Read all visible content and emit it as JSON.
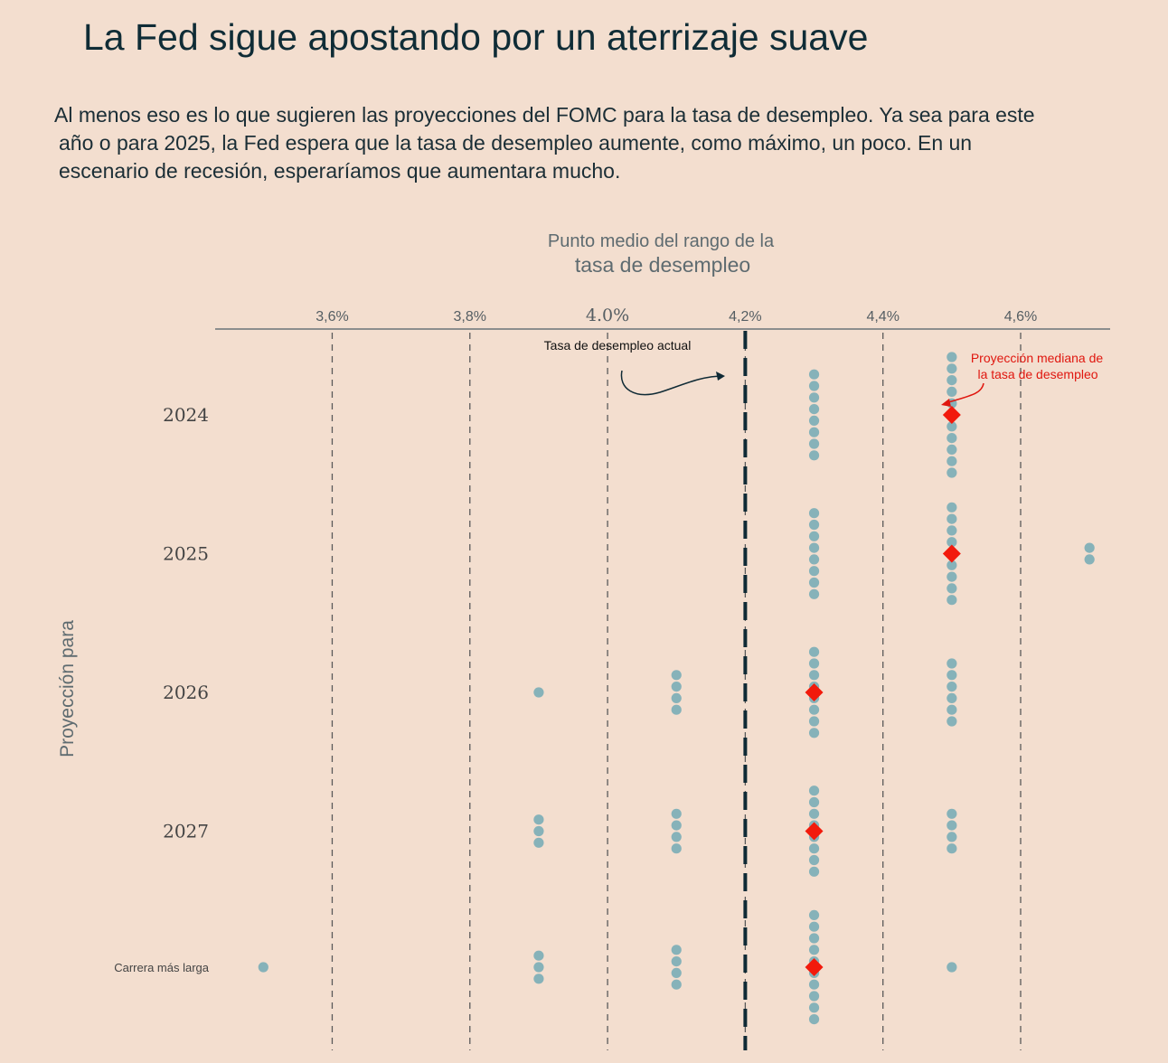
{
  "title": "La Fed sigue apostando por un aterrizaje suave",
  "subtitle": [
    "Al menos eso es lo que sugieren las proyecciones del FOMC para la tasa de desempleo. Ya sea para este",
    "año o para 2025, la Fed espera que la tasa de desempleo aumente, como máximo, un poco. En un",
    "escenario de recesión, esperaríamos que aumentara mucho."
  ],
  "colors": {
    "background": "#f3decf",
    "dot": "#6ea8b3",
    "median": "#f21a0c",
    "current_line": "#0f2a35",
    "grid": "#5a5a5a",
    "annotation_red": "#e0170f"
  },
  "chart_data": {
    "type": "scatter",
    "x_title_line1": "Punto medio del rango de la",
    "x_title_line2": "tasa de desempleo",
    "y_title": "Proyección para",
    "xlim": [
      3.43,
      4.73
    ],
    "x_ticks": [
      {
        "value": 3.6,
        "label": "3,6%"
      },
      {
        "value": 3.8,
        "label": "3,8%"
      },
      {
        "value": 4.0,
        "label": "4.0%"
      },
      {
        "value": 4.2,
        "label": "4,2%"
      },
      {
        "value": 4.4,
        "label": "4,4%"
      },
      {
        "value": 4.6,
        "label": "4,6%"
      }
    ],
    "current_rate": 4.2,
    "current_rate_label": "Tasa de desempleo actual",
    "median_label_line1": "Proyección mediana de",
    "median_label_line2": "la tasa de desempleo",
    "categories": [
      "2024",
      "2025",
      "2026",
      "2027",
      "Carrera más larga"
    ],
    "series": [
      {
        "category": "2024",
        "median": 4.5,
        "projections": [
          {
            "value": 4.3,
            "count": 8
          },
          {
            "value": 4.5,
            "count": 11
          }
        ]
      },
      {
        "category": "2025",
        "median": 4.5,
        "projections": [
          {
            "value": 4.3,
            "count": 8
          },
          {
            "value": 4.5,
            "count": 9
          },
          {
            "value": 4.7,
            "count": 2
          }
        ]
      },
      {
        "category": "2026",
        "median": 4.3,
        "projections": [
          {
            "value": 3.9,
            "count": 1
          },
          {
            "value": 4.1,
            "count": 4
          },
          {
            "value": 4.3,
            "count": 8
          },
          {
            "value": 4.5,
            "count": 6
          }
        ]
      },
      {
        "category": "2027",
        "median": 4.3,
        "projections": [
          {
            "value": 3.9,
            "count": 3
          },
          {
            "value": 4.1,
            "count": 4
          },
          {
            "value": 4.3,
            "count": 8
          },
          {
            "value": 4.5,
            "count": 4
          }
        ]
      },
      {
        "category": "Carrera más larga",
        "median": 4.3,
        "projections": [
          {
            "value": 3.5,
            "count": 1
          },
          {
            "value": 3.9,
            "count": 3
          },
          {
            "value": 4.1,
            "count": 4
          },
          {
            "value": 4.3,
            "count": 10
          },
          {
            "value": 4.5,
            "count": 1
          }
        ]
      }
    ]
  }
}
